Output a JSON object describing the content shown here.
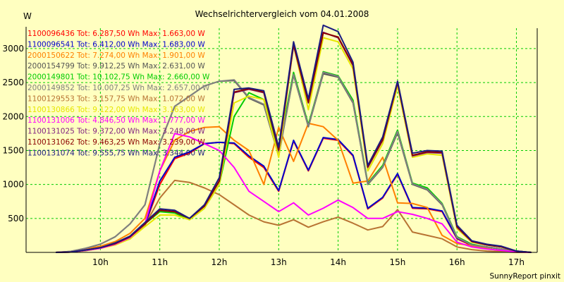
{
  "chart_data": {
    "type": "line",
    "title": "Wechselrichtervergleich vom 04.01.2008",
    "ylabel": "W",
    "xlabel": "",
    "footer": "SunnyReport pinxit",
    "ylim": [
      0,
      3300
    ],
    "y_ticks": [
      500,
      1000,
      1500,
      2000,
      2500,
      3000
    ],
    "x_ticks": [
      "10h",
      "11h",
      "12h",
      "13h",
      "14h",
      "15h",
      "16h",
      "17h"
    ],
    "x_tick_values": [
      10,
      11,
      12,
      13,
      14,
      15,
      16,
      17
    ],
    "xlim": [
      8.75,
      17.35
    ],
    "grid": true,
    "legend_position": "top-left",
    "x": [
      9.25,
      9.5,
      9.75,
      10.0,
      10.25,
      10.5,
      10.75,
      11.0,
      11.25,
      11.5,
      11.75,
      12.0,
      12.25,
      12.5,
      12.75,
      13.0,
      13.25,
      13.5,
      13.75,
      14.0,
      14.25,
      14.5,
      14.75,
      15.0,
      15.25,
      15.5,
      15.75,
      16.0,
      16.25,
      16.5,
      16.75,
      17.0,
      17.25
    ],
    "series": [
      {
        "name": "1100096436",
        "legend": "1100096436 Tot: 6.287,50 Wh Max: 1.663,00 W",
        "color": "#ff0000",
        "values": [
          0,
          5,
          30,
          70,
          130,
          220,
          400,
          1000,
          1380,
          1460,
          1600,
          1620,
          1600,
          1400,
          1250,
          900,
          1640,
          1200,
          1680,
          1650,
          1420,
          640,
          800,
          1150,
          650,
          640,
          600,
          200,
          100,
          80,
          50,
          10,
          0
        ]
      },
      {
        "name": "1100096541",
        "legend": "1100096541 Tot: 6.412,00 Wh Max: 1.683,00 W",
        "color": "#0000cc",
        "values": [
          0,
          5,
          30,
          70,
          130,
          230,
          410,
          1050,
          1400,
          1480,
          1600,
          1620,
          1610,
          1420,
          1270,
          910,
          1650,
          1210,
          1690,
          1660,
          1430,
          650,
          810,
          1160,
          660,
          650,
          610,
          210,
          110,
          80,
          50,
          10,
          0
        ]
      },
      {
        "name": "2000150622",
        "legend": "2000150622 Tot: 7.274,00 Wh Max: 1.901,00 W",
        "color": "#ff8000",
        "values": [
          0,
          10,
          50,
          90,
          160,
          280,
          500,
          1200,
          1650,
          1780,
          1840,
          1850,
          1650,
          1500,
          1000,
          1840,
          1340,
          1900,
          1850,
          1650,
          1020,
          1050,
          1400,
          730,
          720,
          660,
          250,
          130,
          100,
          60,
          20,
          5,
          0
        ]
      },
      {
        "name": "2000154799",
        "legend": "2000154799 Tot: 9.912,25 Wh Max: 2.631,00 W",
        "color": "#555555",
        "values": [
          0,
          15,
          60,
          120,
          230,
          420,
          700,
          1600,
          2150,
          2300,
          2450,
          2520,
          2530,
          2270,
          2170,
          1420,
          2610,
          1850,
          2630,
          2580,
          2200,
          1000,
          1250,
          1760,
          1000,
          920,
          700,
          220,
          110,
          80,
          50,
          10,
          0
        ]
      },
      {
        "name": "2000149801",
        "legend": "2000149801 Tot: 10.102,75 Wh Max: 2.660,00 W",
        "color": "#00cc00",
        "values": [
          0,
          5,
          30,
          60,
          120,
          200,
          420,
          600,
          580,
          480,
          650,
          1000,
          2000,
          2350,
          2250,
          1500,
          2650,
          1880,
          2660,
          2600,
          2240,
          1020,
          1280,
          1800,
          1020,
          950,
          720,
          230,
          120,
          80,
          50,
          10,
          0
        ]
      },
      {
        "name": "2000149852",
        "legend": "2000149852 Tot: 10.007,25 Wh Max: 2.657,00 W",
        "color": "#808080",
        "values": [
          0,
          15,
          60,
          120,
          230,
          420,
          700,
          1600,
          2150,
          2300,
          2450,
          2520,
          2540,
          2280,
          2180,
          1430,
          2620,
          1860,
          2650,
          2590,
          2210,
          1010,
          1260,
          1780,
          1010,
          930,
          710,
          220,
          110,
          80,
          50,
          10,
          0
        ]
      },
      {
        "name": "1100129553",
        "legend": "1100129553 Tot: 3.157,75 Wh Max: 1.072,00 W",
        "color": "#b87333",
        "values": [
          0,
          5,
          25,
          60,
          120,
          200,
          400,
          800,
          1060,
          1030,
          950,
          850,
          700,
          550,
          450,
          400,
          480,
          370,
          450,
          520,
          430,
          330,
          380,
          630,
          300,
          250,
          200,
          80,
          40,
          20,
          10,
          0,
          0
        ]
      },
      {
        "name": "1100130866",
        "legend": "1100130866 Tot: 9.122,00 Wh Max: 3.163,00 W",
        "color": "#e6e600",
        "values": [
          0,
          5,
          30,
          60,
          110,
          200,
          380,
          550,
          550,
          480,
          650,
          1000,
          2200,
          2300,
          2250,
          1400,
          3050,
          2100,
          3160,
          3100,
          2700,
          1200,
          1600,
          2450,
          1400,
          1450,
          1430,
          350,
          150,
          110,
          80,
          20,
          0
        ]
      },
      {
        "name": "1100131006",
        "legend": "1100131006 Tot: 4.846,50 Wh Max: 1.777,00 W",
        "color": "#ff00ff",
        "values": [
          0,
          5,
          30,
          60,
          120,
          220,
          420,
          1200,
          1750,
          1700,
          1600,
          1500,
          1250,
          900,
          750,
          600,
          730,
          550,
          650,
          770,
          660,
          500,
          500,
          600,
          560,
          500,
          420,
          150,
          80,
          50,
          30,
          5,
          0
        ]
      },
      {
        "name": "1100131025",
        "legend": "1100131025 Tot: 9.372,00 Wh Max: 3.248,00 W",
        "color": "#7f1f7f",
        "values": [
          0,
          5,
          35,
          70,
          130,
          230,
          420,
          620,
          600,
          500,
          680,
          1050,
          2350,
          2400,
          2350,
          1500,
          3050,
          2200,
          3240,
          3160,
          2750,
          1250,
          1650,
          2500,
          1420,
          1470,
          1460,
          370,
          160,
          110,
          80,
          20,
          0
        ]
      },
      {
        "name": "1100131062",
        "legend": "1100131062 Tot: 9.463,25 Wh Max: 3.239,00 W",
        "color": "#8b0000",
        "values": [
          0,
          5,
          35,
          70,
          130,
          230,
          420,
          620,
          600,
          500,
          680,
          1050,
          2360,
          2410,
          2360,
          1510,
          3060,
          2210,
          3230,
          3170,
          2760,
          1260,
          1660,
          2500,
          1430,
          1480,
          1470,
          380,
          160,
          110,
          80,
          20,
          0
        ]
      },
      {
        "name": "1100131074",
        "legend": "1100131074 Tot: 9.555,75 Wh Max: 3.344,00 W",
        "color": "#1a1a80",
        "values": [
          0,
          5,
          35,
          70,
          140,
          240,
          440,
          640,
          620,
          500,
          700,
          1100,
          2400,
          2420,
          2380,
          1550,
          3100,
          2260,
          3344,
          3250,
          2800,
          1280,
          1700,
          2520,
          1460,
          1500,
          1490,
          400,
          170,
          120,
          90,
          20,
          0
        ]
      }
    ]
  }
}
